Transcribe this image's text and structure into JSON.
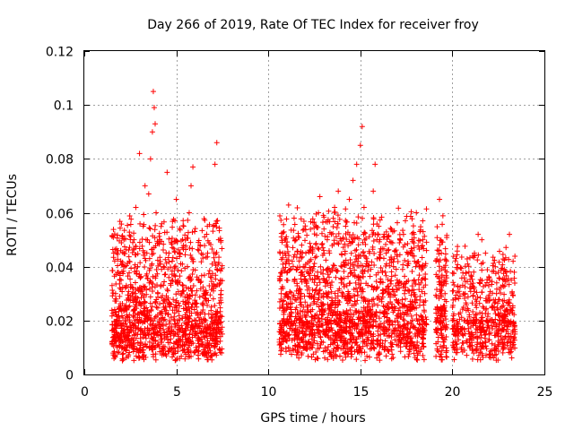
{
  "chart_data": {
    "type": "scatter",
    "title": "Day 266 of 2019, Rate Of TEC Index for receiver froy",
    "xlabel": "GPS time / hours",
    "ylabel": "ROTI / TECUs",
    "xlim": [
      0,
      25
    ],
    "ylim": [
      0,
      0.12
    ],
    "xticks": [
      0,
      5,
      10,
      15,
      20,
      25
    ],
    "xtick_labels": [
      "0",
      "5",
      "10",
      "15",
      "20",
      "25"
    ],
    "yticks": [
      0,
      0.02,
      0.04,
      0.06,
      0.08,
      0.1,
      0.12
    ],
    "ytick_labels": [
      "0",
      "0.02",
      "0.04",
      "0.06",
      "0.08",
      "0.1",
      "0.12"
    ],
    "grid": true,
    "marker": "plus",
    "color": "#ff0000",
    "series": [
      {
        "name": "ROTI",
        "points": [
          [
            1.5,
            0.012
          ],
          [
            1.6,
            0.045
          ],
          [
            1.7,
            0.03
          ],
          [
            1.8,
            0.008
          ],
          [
            1.9,
            0.02
          ],
          [
            2.0,
            0.035
          ],
          [
            2.1,
            0.015
          ],
          [
            2.2,
            0.04
          ],
          [
            2.3,
            0.01
          ],
          [
            2.4,
            0.025
          ],
          [
            2.5,
            0.018
          ],
          [
            2.6,
            0.03
          ],
          [
            2.7,
            0.05
          ],
          [
            2.8,
            0.062
          ],
          [
            2.9,
            0.04
          ],
          [
            3.0,
            0.082
          ],
          [
            3.1,
            0.02
          ],
          [
            3.2,
            0.055
          ],
          [
            3.3,
            0.07
          ],
          [
            3.4,
            0.045
          ],
          [
            3.5,
            0.067
          ],
          [
            3.6,
            0.08
          ],
          [
            3.7,
            0.09
          ],
          [
            3.75,
            0.105
          ],
          [
            3.8,
            0.099
          ],
          [
            3.85,
            0.093
          ],
          [
            3.9,
            0.06
          ],
          [
            4.0,
            0.03
          ],
          [
            4.1,
            0.05
          ],
          [
            4.2,
            0.012
          ],
          [
            4.3,
            0.04
          ],
          [
            4.4,
            0.025
          ],
          [
            4.5,
            0.075
          ],
          [
            4.6,
            0.045
          ],
          [
            4.7,
            0.015
          ],
          [
            4.8,
            0.035
          ],
          [
            4.9,
            0.02
          ],
          [
            5.0,
            0.065
          ],
          [
            5.1,
            0.01
          ],
          [
            5.2,
            0.045
          ],
          [
            5.3,
            0.03
          ],
          [
            5.4,
            0.055
          ],
          [
            5.5,
            0.015
          ],
          [
            5.6,
            0.04
          ],
          [
            5.7,
            0.06
          ],
          [
            5.8,
            0.07
          ],
          [
            5.9,
            0.077
          ],
          [
            6.0,
            0.053
          ],
          [
            6.1,
            0.025
          ],
          [
            6.2,
            0.035
          ],
          [
            6.3,
            0.048
          ],
          [
            6.4,
            0.012
          ],
          [
            6.5,
            0.03
          ],
          [
            6.6,
            0.02
          ],
          [
            6.7,
            0.045
          ],
          [
            6.8,
            0.01
          ],
          [
            6.9,
            0.025
          ],
          [
            7.0,
            0.055
          ],
          [
            7.1,
            0.078
          ],
          [
            7.2,
            0.086
          ],
          [
            7.3,
            0.05
          ],
          [
            7.4,
            0.035
          ],
          [
            7.5,
            0.015
          ],
          [
            10.6,
            0.012
          ],
          [
            10.7,
            0.03
          ],
          [
            10.8,
            0.02
          ],
          [
            10.9,
            0.045
          ],
          [
            11.0,
            0.035
          ],
          [
            11.1,
            0.01
          ],
          [
            11.2,
            0.025
          ],
          [
            11.3,
            0.042
          ],
          [
            11.4,
            0.058
          ],
          [
            11.5,
            0.05
          ],
          [
            11.6,
            0.015
          ],
          [
            11.7,
            0.03
          ],
          [
            11.8,
            0.02
          ],
          [
            11.9,
            0.04
          ],
          [
            12.0,
            0.035
          ],
          [
            12.2,
            0.012
          ],
          [
            12.4,
            0.045
          ],
          [
            12.6,
            0.055
          ],
          [
            12.8,
            0.066
          ],
          [
            13.0,
            0.03
          ],
          [
            13.2,
            0.05
          ],
          [
            13.4,
            0.02
          ],
          [
            13.6,
            0.062
          ],
          [
            13.8,
            0.068
          ],
          [
            14.0,
            0.04
          ],
          [
            14.2,
            0.055
          ],
          [
            14.4,
            0.065
          ],
          [
            14.6,
            0.072
          ],
          [
            14.8,
            0.078
          ],
          [
            15.0,
            0.085
          ],
          [
            15.1,
            0.092
          ],
          [
            15.2,
            0.062
          ],
          [
            15.3,
            0.04
          ],
          [
            15.4,
            0.025
          ],
          [
            15.5,
            0.045
          ],
          [
            15.6,
            0.018
          ],
          [
            15.7,
            0.068
          ],
          [
            15.8,
            0.078
          ],
          [
            15.9,
            0.05
          ],
          [
            16.0,
            0.055
          ],
          [
            16.2,
            0.03
          ],
          [
            16.4,
            0.045
          ],
          [
            16.6,
            0.02
          ],
          [
            16.8,
            0.04
          ],
          [
            17.0,
            0.035
          ],
          [
            17.2,
            0.012
          ],
          [
            17.4,
            0.03
          ],
          [
            17.6,
            0.045
          ],
          [
            17.8,
            0.025
          ],
          [
            18.0,
            0.04
          ],
          [
            18.2,
            0.015
          ],
          [
            18.4,
            0.05
          ],
          [
            18.5,
            0.03
          ],
          [
            19.2,
            0.02
          ],
          [
            19.3,
            0.065
          ],
          [
            19.4,
            0.045
          ],
          [
            19.5,
            0.01
          ],
          [
            19.6,
            0.03
          ],
          [
            20.0,
            0.02
          ],
          [
            20.2,
            0.043
          ],
          [
            20.5,
            0.01
          ],
          [
            20.7,
            0.03
          ],
          [
            20.9,
            0.038
          ],
          [
            21.0,
            0.02
          ],
          [
            21.2,
            0.045
          ],
          [
            21.4,
            0.052
          ],
          [
            21.6,
            0.05
          ],
          [
            21.8,
            0.045
          ],
          [
            22.0,
            0.015
          ],
          [
            22.2,
            0.025
          ],
          [
            22.4,
            0.03
          ],
          [
            22.6,
            0.02
          ],
          [
            22.8,
            0.01
          ],
          [
            23.0,
            0.02
          ],
          [
            23.1,
            0.052
          ],
          [
            23.2,
            0.035
          ],
          [
            23.3,
            0.042
          ],
          [
            23.4,
            0.015
          ]
        ]
      }
    ],
    "observation_windows": [
      {
        "start": 1.5,
        "end": 7.5,
        "base": 0.012,
        "spread": 0.045,
        "count": 1300
      },
      {
        "start": 10.6,
        "end": 18.6,
        "base": 0.015,
        "spread": 0.045,
        "count": 1700
      },
      {
        "start": 19.1,
        "end": 19.7,
        "base": 0.02,
        "spread": 0.035,
        "count": 150
      },
      {
        "start": 20.0,
        "end": 23.4,
        "base": 0.015,
        "spread": 0.03,
        "count": 550
      }
    ]
  }
}
